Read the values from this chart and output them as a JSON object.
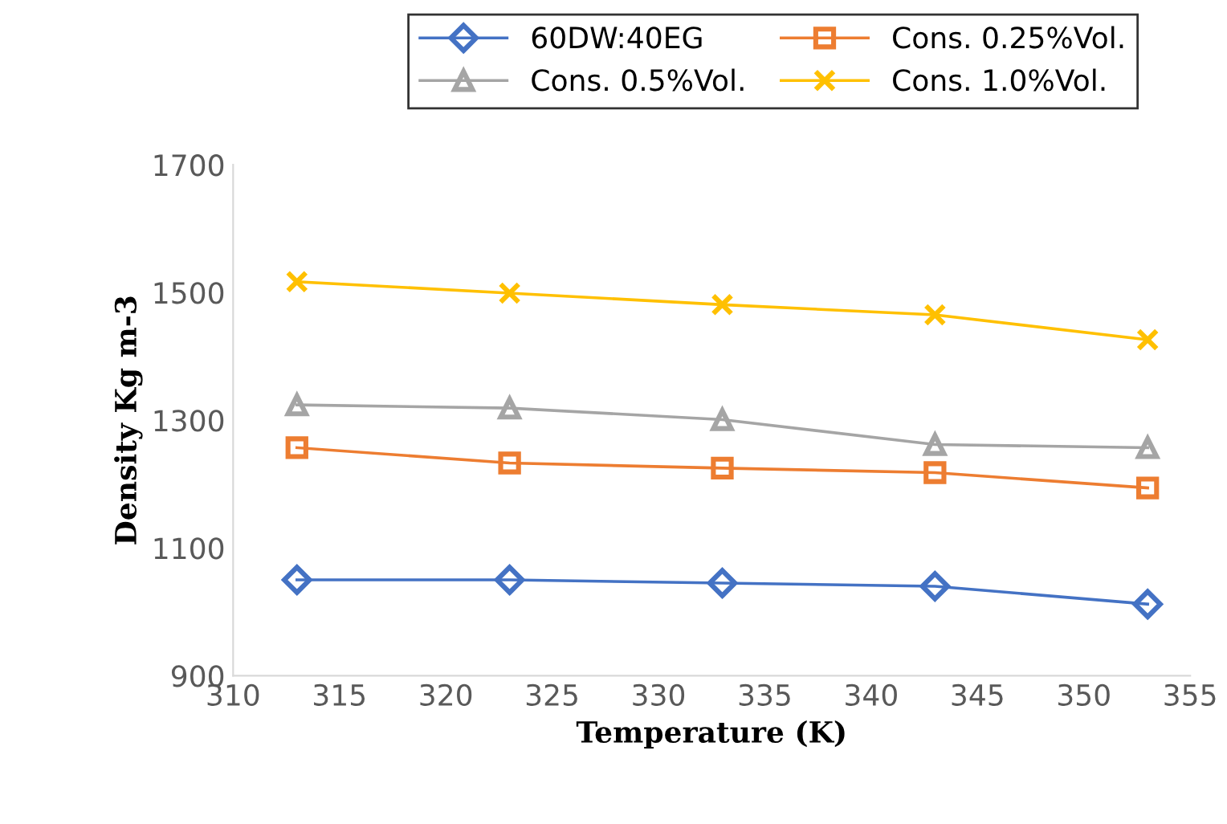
{
  "chart_data": {
    "type": "line",
    "xlabel": "Temperature (K)",
    "ylabel": "Density Kg m-3",
    "x": [
      313,
      323,
      333,
      343,
      353
    ],
    "series": [
      {
        "name": "60DW:40EG",
        "color": "#4472c4",
        "marker": "diamond",
        "values": [
          1050,
          1050,
          1045,
          1040,
          1012
        ]
      },
      {
        "name": "Cons. 0.25%Vol.",
        "color": "#ed7d31",
        "marker": "square",
        "values": [
          1257,
          1233,
          1225,
          1218,
          1194
        ]
      },
      {
        "name": "Cons. 0.5%Vol.",
        "color": "#a5a5a5",
        "marker": "triangle",
        "values": [
          1324,
          1319,
          1301,
          1262,
          1257
        ]
      },
      {
        "name": "Cons. 1.0%Vol.",
        "color": "#ffc000",
        "marker": "cross",
        "values": [
          1517,
          1499,
          1481,
          1465,
          1426
        ]
      }
    ],
    "xlim": [
      310,
      355
    ],
    "xticks": [
      310,
      315,
      320,
      325,
      330,
      335,
      340,
      345,
      350,
      355
    ],
    "ylim": [
      900,
      1700
    ],
    "yticks": [
      900,
      1100,
      1300,
      1500,
      1700
    ],
    "grid": false,
    "legend": "top",
    "line_style": "solid"
  }
}
